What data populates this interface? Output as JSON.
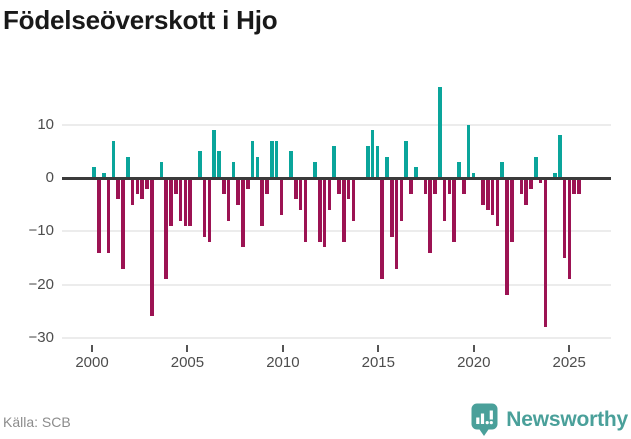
{
  "title": "Födelseöverskott i Hjo",
  "footer": {
    "source": "Källa: SCB",
    "logo_text": "Newsworthy"
  },
  "colors": {
    "positive": "#0aa59b",
    "negative": "#9c1353",
    "zero_line": "#3b3b3b",
    "gridline": "#ececec",
    "axis_text": "#4d4d4d",
    "title_text": "#191919",
    "source_text": "#8c8c8c",
    "logo": "#4aa09a",
    "background": "#ffffff"
  },
  "chart_data": {
    "type": "bar",
    "title": "Födelseöverskott i Hjo",
    "frequency": "quarterly",
    "start": "2000-Q1",
    "end": "2025-Q2",
    "values": [
      2,
      -14,
      1,
      -14,
      7,
      -4,
      -17,
      4,
      -5,
      -3,
      -4,
      -2,
      -26,
      0,
      3,
      -19,
      -9,
      -3,
      -8,
      -9,
      -9,
      0,
      5,
      -11,
      -12,
      9,
      5,
      -3,
      -8,
      3,
      -5,
      -13,
      -2,
      7,
      4,
      -9,
      -3,
      7,
      7,
      -7,
      0,
      5,
      -4,
      -6,
      -12,
      0,
      3,
      -12,
      -13,
      -6,
      6,
      -3,
      -12,
      -4,
      -8,
      0,
      0,
      6,
      9,
      6,
      -19,
      4,
      -11,
      -17,
      -8,
      7,
      -3,
      2,
      0,
      -3,
      -14,
      -3,
      17,
      -8,
      -3,
      -12,
      3,
      -3,
      10,
      1,
      0,
      -5,
      -6,
      -7,
      -9,
      3,
      -22,
      -12,
      0,
      -3,
      -5,
      -2,
      4,
      -1,
      -28,
      0,
      1,
      8,
      -15,
      -19,
      -3,
      -3
    ],
    "y_ticks": [
      10,
      0,
      -10,
      -20,
      -30
    ],
    "y_tick_labels": [
      "10",
      "0",
      "−10",
      "−20",
      "−30"
    ],
    "x_tick_years": [
      2000,
      2005,
      2010,
      2015,
      2020,
      2025
    ],
    "ylim": [
      -30,
      17
    ],
    "grid": true,
    "legend": "none",
    "positive_color_meaning": "birth surplus (positive)",
    "negative_color_meaning": "birth deficit (negative)"
  }
}
